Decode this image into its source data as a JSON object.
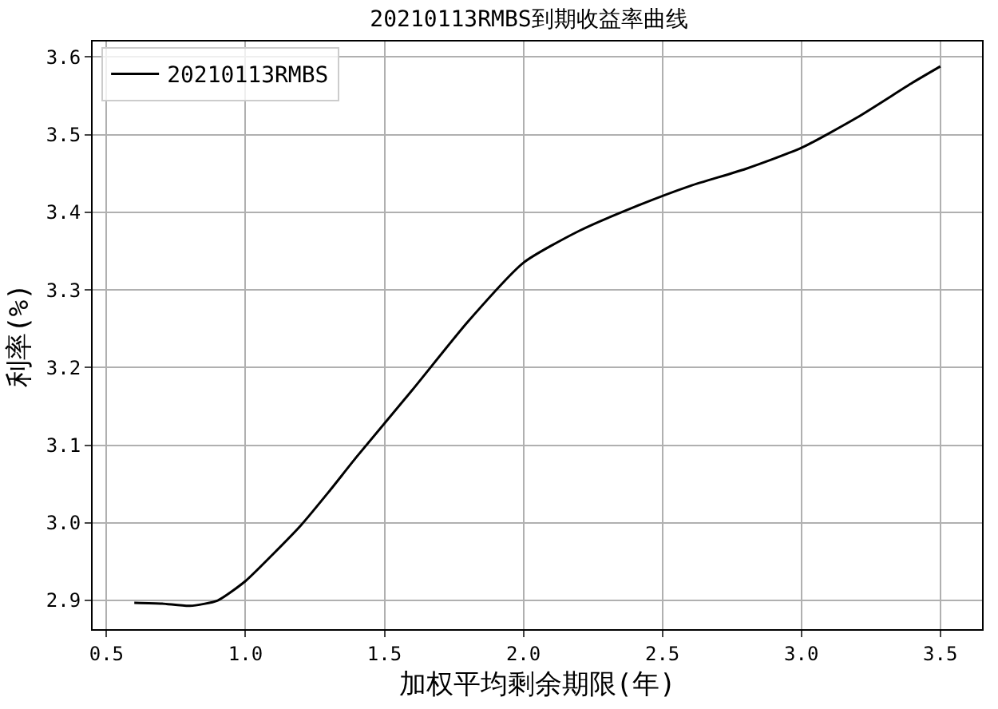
{
  "chart_data": {
    "type": "line",
    "title": "20210113RMBS到期收益率曲线",
    "xlabel": "加权平均剩余期限(年)",
    "ylabel": "利率(%)",
    "x": [
      0.6,
      0.7,
      0.8,
      0.9,
      1.0,
      1.1,
      1.2,
      1.3,
      1.4,
      1.6,
      1.8,
      2.0,
      2.2,
      2.4,
      2.6,
      2.8,
      3.0,
      3.2,
      3.4,
      3.5
    ],
    "series": [
      {
        "name": "20210113RMBS",
        "color": "#000000",
        "values": [
          2.897,
          2.896,
          2.893,
          2.9,
          2.925,
          2.96,
          2.997,
          3.04,
          3.085,
          3.171,
          3.259,
          3.335,
          3.376,
          3.407,
          3.434,
          3.456,
          3.483,
          3.522,
          3.567,
          3.588
        ]
      }
    ],
    "xlim": [
      0.45,
      3.65
    ],
    "ylim": [
      2.863,
      3.62
    ],
    "xticks": [
      {
        "value": 0.5,
        "label": "0.5"
      },
      {
        "value": 1.0,
        "label": "1.0"
      },
      {
        "value": 1.5,
        "label": "1.5"
      },
      {
        "value": 2.0,
        "label": "2.0"
      },
      {
        "value": 2.5,
        "label": "2.5"
      },
      {
        "value": 3.0,
        "label": "3.0"
      },
      {
        "value": 3.5,
        "label": "3.5"
      }
    ],
    "yticks": [
      {
        "value": 2.9,
        "label": "2.9"
      },
      {
        "value": 3.0,
        "label": "3.0"
      },
      {
        "value": 3.1,
        "label": "3.1"
      },
      {
        "value": 3.2,
        "label": "3.2"
      },
      {
        "value": 3.3,
        "label": "3.3"
      },
      {
        "value": 3.4,
        "label": "3.4"
      },
      {
        "value": 3.5,
        "label": "3.5"
      },
      {
        "value": 3.6,
        "label": "3.6"
      }
    ],
    "grid": true,
    "legend": "top left",
    "marker": "none",
    "line_style": "solid"
  }
}
